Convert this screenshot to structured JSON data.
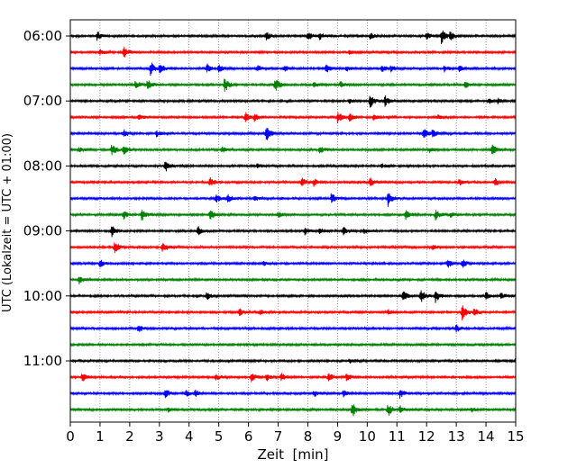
{
  "chart_data": {
    "type": "line",
    "title": "",
    "xlabel": "Zeit  [min]",
    "ylabel": "UTC (Lokalzeit = UTC + 01:00)",
    "xlim": [
      0,
      15
    ],
    "x_ticks": [
      0,
      1,
      2,
      3,
      4,
      5,
      6,
      7,
      8,
      9,
      10,
      11,
      12,
      13,
      14,
      15
    ],
    "x_tick_labels": [
      "0",
      "1",
      "2",
      "3",
      "4",
      "5",
      "6",
      "7",
      "8",
      "9",
      "10",
      "11",
      "12",
      "13",
      "14",
      "15"
    ],
    "y_tick_labels": [
      "06:00",
      "07:00",
      "08:00",
      "09:00",
      "10:00",
      "11:00"
    ],
    "y_tick_traces": [
      0,
      4,
      8,
      12,
      16,
      20
    ],
    "start_time": "06:00",
    "minutes_per_trace": 15,
    "grid": "vertical dotted",
    "colors": [
      "#000000",
      "#ff0000",
      "#0000ff",
      "#008000"
    ],
    "series": [
      {
        "time": "06:00",
        "color": "#000000",
        "bursts": [
          [
            0.9,
            0.6
          ],
          [
            6.6,
            0.6
          ],
          [
            8.0,
            0.7
          ],
          [
            8.4,
            0.4
          ],
          [
            10.1,
            0.4
          ],
          [
            12.0,
            0.5
          ],
          [
            12.5,
            1.0
          ],
          [
            12.8,
            0.6
          ]
        ]
      },
      {
        "time": "06:15",
        "color": "#ff0000",
        "bursts": [
          [
            1.0,
            0.4
          ],
          [
            1.8,
            0.8
          ],
          [
            9.4,
            0.3
          ]
        ]
      },
      {
        "time": "06:30",
        "color": "#0000ff",
        "bursts": [
          [
            2.7,
            1.0
          ],
          [
            3.0,
            0.7
          ],
          [
            4.6,
            0.6
          ],
          [
            5.0,
            0.5
          ],
          [
            6.3,
            0.4
          ],
          [
            7.2,
            0.4
          ],
          [
            8.6,
            0.6
          ],
          [
            9.3,
            0.4
          ],
          [
            10.5,
            0.4
          ],
          [
            10.8,
            0.4
          ],
          [
            12.6,
            0.4
          ],
          [
            13.1,
            0.4
          ]
        ]
      },
      {
        "time": "06:45",
        "color": "#008000",
        "bursts": [
          [
            2.2,
            0.6
          ],
          [
            2.6,
            0.8
          ],
          [
            5.2,
            1.0
          ],
          [
            6.9,
            0.9
          ],
          [
            8.2,
            0.4
          ],
          [
            9.1,
            0.4
          ],
          [
            13.3,
            0.6
          ]
        ]
      },
      {
        "time": "07:00",
        "color": "#000000",
        "bursts": [
          [
            9.4,
            0.3
          ],
          [
            10.1,
            1.0
          ],
          [
            10.6,
            0.7
          ],
          [
            14.1,
            0.3
          ],
          [
            14.4,
            0.3
          ]
        ]
      },
      {
        "time": "07:15",
        "color": "#ff0000",
        "bursts": [
          [
            2.3,
            0.3
          ],
          [
            5.9,
            0.7
          ],
          [
            6.2,
            0.5
          ],
          [
            9.0,
            0.8
          ],
          [
            9.4,
            0.6
          ],
          [
            10.2,
            0.4
          ],
          [
            12.4,
            0.3
          ]
        ]
      },
      {
        "time": "07:30",
        "color": "#0000ff",
        "bursts": [
          [
            1.8,
            0.5
          ],
          [
            2.9,
            0.4
          ],
          [
            6.6,
            1.0
          ],
          [
            11.9,
            0.7
          ],
          [
            12.2,
            0.5
          ]
        ]
      },
      {
        "time": "07:45",
        "color": "#008000",
        "bursts": [
          [
            0.3,
            0.4
          ],
          [
            1.4,
            0.8
          ],
          [
            1.8,
            0.6
          ],
          [
            5.1,
            0.4
          ],
          [
            8.4,
            0.6
          ],
          [
            12.1,
            0.3
          ],
          [
            14.2,
            0.7
          ]
        ]
      },
      {
        "time": "08:00",
        "color": "#000000",
        "bursts": [
          [
            3.2,
            0.8
          ],
          [
            6.3,
            0.3
          ],
          [
            10.5,
            0.3
          ]
        ]
      },
      {
        "time": "08:15",
        "color": "#ff0000",
        "bursts": [
          [
            4.7,
            0.6
          ],
          [
            7.8,
            0.6
          ],
          [
            8.2,
            0.5
          ],
          [
            10.1,
            0.6
          ],
          [
            13.1,
            0.4
          ],
          [
            14.3,
            0.5
          ]
        ]
      },
      {
        "time": "08:30",
        "color": "#0000ff",
        "bursts": [
          [
            4.9,
            0.7
          ],
          [
            5.3,
            0.5
          ],
          [
            6.2,
            0.4
          ],
          [
            8.8,
            0.8
          ],
          [
            10.7,
            1.0
          ]
        ]
      },
      {
        "time": "08:45",
        "color": "#008000",
        "bursts": [
          [
            1.8,
            0.6
          ],
          [
            2.4,
            0.8
          ],
          [
            4.7,
            0.7
          ],
          [
            7.0,
            0.4
          ],
          [
            11.3,
            0.6
          ],
          [
            12.3,
            0.7
          ],
          [
            12.8,
            0.4
          ]
        ]
      },
      {
        "time": "09:00",
        "color": "#000000",
        "bursts": [
          [
            1.4,
            0.7
          ],
          [
            4.3,
            0.6
          ],
          [
            7.9,
            0.5
          ],
          [
            8.4,
            0.4
          ],
          [
            9.2,
            0.5
          ],
          [
            9.9,
            0.3
          ]
        ]
      },
      {
        "time": "09:15",
        "color": "#ff0000",
        "bursts": [
          [
            1.5,
            0.9
          ],
          [
            3.1,
            0.9
          ],
          [
            12.2,
            0.3
          ]
        ]
      },
      {
        "time": "09:30",
        "color": "#0000ff",
        "bursts": [
          [
            1.0,
            0.6
          ],
          [
            6.5,
            0.3
          ],
          [
            12.7,
            0.6
          ],
          [
            13.2,
            0.6
          ]
        ]
      },
      {
        "time": "09:45",
        "color": "#008000",
        "bursts": [
          [
            0.3,
            0.5
          ]
        ]
      },
      {
        "time": "10:00",
        "color": "#000000",
        "bursts": [
          [
            4.6,
            0.5
          ],
          [
            11.2,
            0.8
          ],
          [
            11.8,
            1.0
          ],
          [
            12.3,
            0.8
          ],
          [
            14.0,
            0.6
          ],
          [
            14.5,
            0.4
          ]
        ]
      },
      {
        "time": "10:15",
        "color": "#ff0000",
        "bursts": [
          [
            5.7,
            0.4
          ],
          [
            6.4,
            0.3
          ],
          [
            10.7,
            0.4
          ],
          [
            13.2,
            1.0
          ],
          [
            13.6,
            0.5
          ]
        ]
      },
      {
        "time": "10:30",
        "color": "#0000ff",
        "bursts": [
          [
            2.3,
            0.6
          ],
          [
            13.0,
            0.5
          ]
        ]
      },
      {
        "time": "10:45",
        "color": "#008000",
        "bursts": []
      },
      {
        "time": "11:00",
        "color": "#000000",
        "bursts": [
          [
            9.4,
            0.3
          ],
          [
            15.0,
            0.3
          ]
        ]
      },
      {
        "time": "11:15",
        "color": "#ff0000",
        "bursts": [
          [
            0.4,
            0.6
          ],
          [
            4.9,
            0.5
          ],
          [
            6.1,
            0.6
          ],
          [
            6.6,
            0.5
          ],
          [
            7.1,
            0.5
          ],
          [
            8.7,
            0.6
          ],
          [
            9.3,
            0.5
          ]
        ]
      },
      {
        "time": "11:30",
        "color": "#0000ff",
        "bursts": [
          [
            3.2,
            0.6
          ],
          [
            3.9,
            0.4
          ],
          [
            4.2,
            0.4
          ],
          [
            8.2,
            0.4
          ],
          [
            9.2,
            0.5
          ],
          [
            11.1,
            0.6
          ]
        ]
      },
      {
        "time": "11:45",
        "color": "#008000",
        "bursts": [
          [
            3.3,
            0.3
          ],
          [
            9.5,
            1.0
          ],
          [
            10.7,
            0.9
          ],
          [
            11.1,
            0.5
          ],
          [
            13.5,
            0.3
          ]
        ]
      }
    ]
  }
}
